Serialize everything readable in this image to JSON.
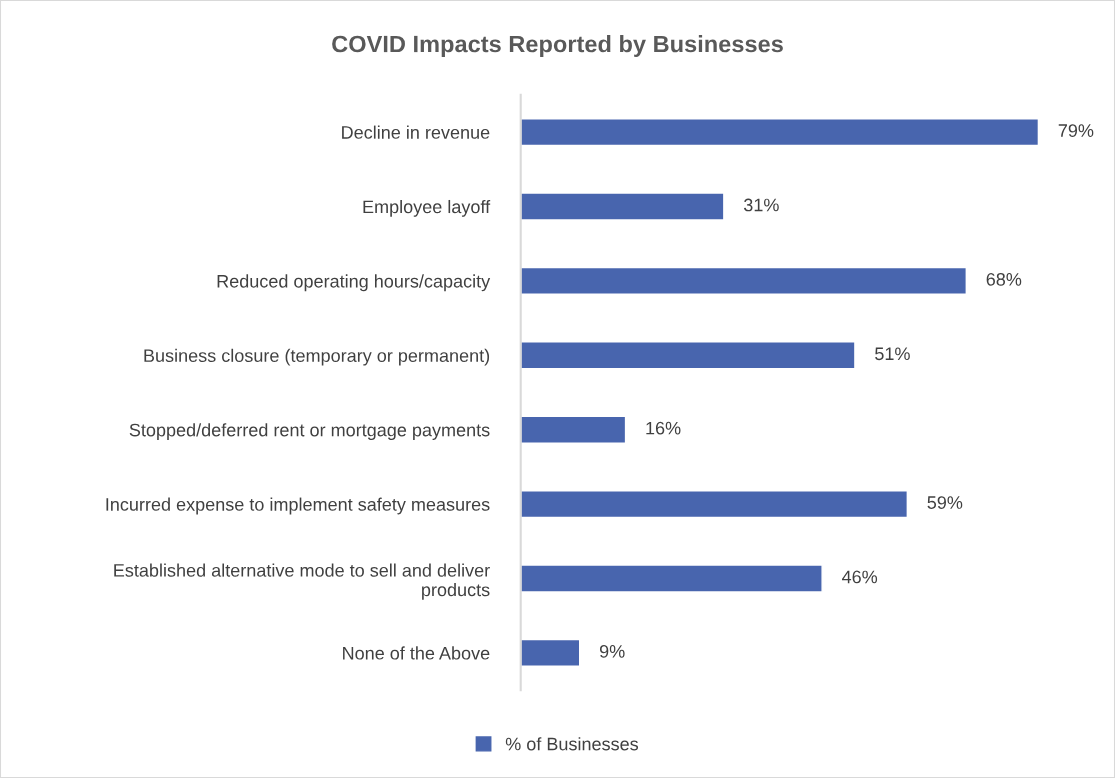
{
  "chart_data": {
    "type": "bar",
    "orientation": "horizontal",
    "title": "COVID Impacts Reported by Businesses",
    "categories": [
      "Decline in revenue",
      "Employee layoff",
      "Reduced operating hours/capacity",
      "Business closure (temporary or permanent)",
      "Stopped/deferred rent or mortgage payments",
      "Incurred expense to implement safety measures",
      "Established alternative mode to sell and deliver\nproducts",
      "None of the Above"
    ],
    "series": [
      {
        "name": "% of Businesses",
        "color": "#4865ae",
        "values": [
          79,
          31,
          68,
          51,
          16,
          59,
          46,
          9
        ],
        "value_labels": [
          "79%",
          "31%",
          "68%",
          "51%",
          "16%",
          "59%",
          "46%",
          "9%"
        ]
      }
    ],
    "legend": "bottom",
    "grid": false,
    "tick_labels": "y"
  }
}
